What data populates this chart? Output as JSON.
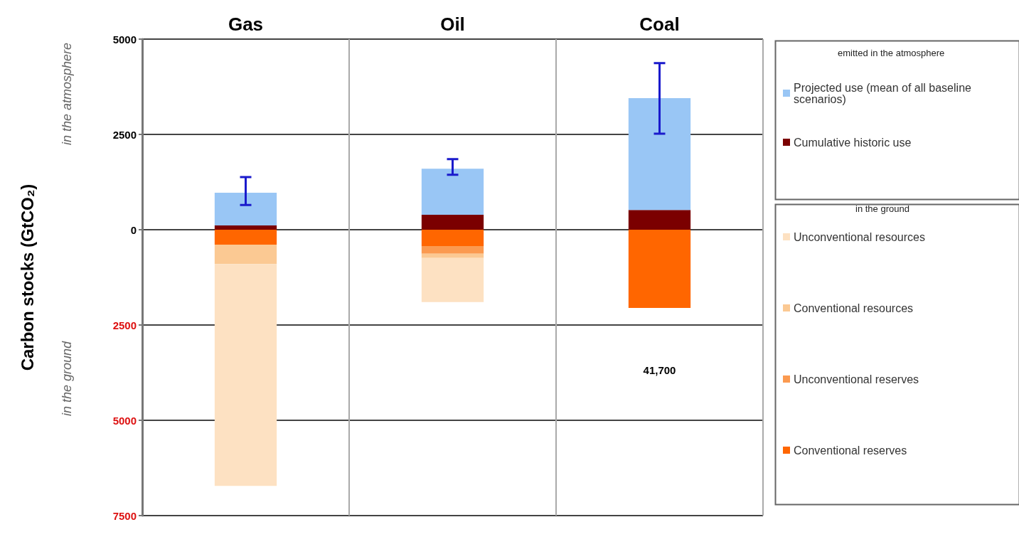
{
  "chart_data": {
    "type": "bar",
    "stacked": true,
    "ylabel": "Carbon stocks (GtCO₂)",
    "categories": [
      "Gas",
      "Oil",
      "Coal"
    ],
    "series": [
      {
        "name": "Cumulative historic use",
        "color": "#7b0000",
        "values": [
          110,
          390,
          520
        ]
      },
      {
        "name": "Projected use (mean of all baseline scenarios)",
        "color": "#99c6f5",
        "values": [
          860,
          1210,
          2930
        ],
        "errors": [
          [
            650,
            1380
          ],
          [
            1440,
            1850
          ],
          [
            2520,
            4370
          ]
        ]
      },
      {
        "name": "Conventional reserves",
        "color": "#ff6600",
        "values": [
          -390,
          -430,
          -2050
        ]
      },
      {
        "name": "Unconventional reserves",
        "color": "#fb9a50",
        "values": [
          0,
          -200,
          0
        ]
      },
      {
        "name": "Conventional resources",
        "color": "#fbc993",
        "values": [
          -510,
          -110,
          null
        ]
      },
      {
        "name": "Unconventional resources",
        "color": "#fde1c2",
        "values": [
          -5820,
          -1160,
          0
        ]
      }
    ],
    "ylim": [
      -7500,
      5000
    ],
    "yticks": [
      {
        "value": -7500,
        "label": "7500"
      },
      {
        "value": -5000,
        "label": "5000"
      },
      {
        "value": -2500,
        "label": "2500"
      },
      0,
      2500,
      5000
    ],
    "grid": true,
    "legend": "right",
    "annotations": [
      "in the atmosphere",
      "in the ground",
      "emitted in the atmosphere",
      "in the ground",
      "41,700"
    ]
  }
}
